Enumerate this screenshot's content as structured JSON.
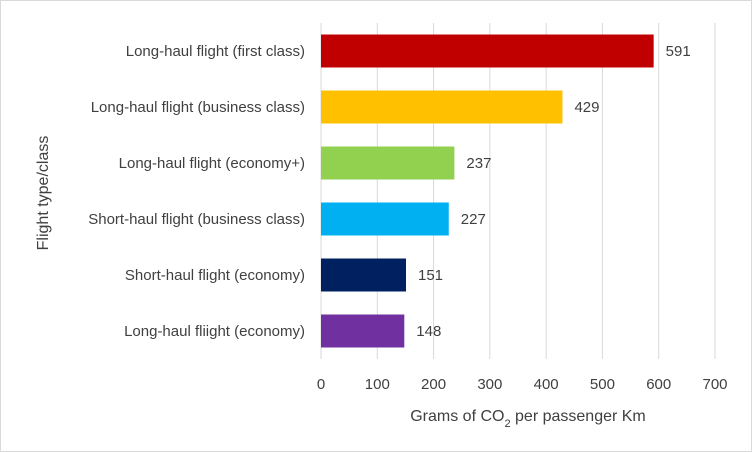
{
  "chart_data": {
    "type": "bar",
    "orientation": "horizontal",
    "categories": [
      "Long-haul flight (first class)",
      "Long-haul flight (business class)",
      "Long-haul flight (economy+)",
      "Short-haul flight (business class)",
      "Short-haul flight (economy)",
      "Long-haul fliight (economy)"
    ],
    "values": [
      591,
      429,
      237,
      227,
      151,
      148
    ],
    "colors": [
      "#c00000",
      "#ffc000",
      "#92d050",
      "#00b0f0",
      "#002060",
      "#7030a0"
    ],
    "xlabel_pre": "Grams of CO",
    "xlabel_sub": "2",
    "xlabel_post": " per passenger Km",
    "ylabel": "Flight type/class",
    "xlim": [
      0,
      700
    ],
    "xticks": [
      "0",
      "100",
      "200",
      "300",
      "400",
      "500",
      "600",
      "700"
    ],
    "grid": "vertical",
    "data_labels": true,
    "legend": "none"
  }
}
